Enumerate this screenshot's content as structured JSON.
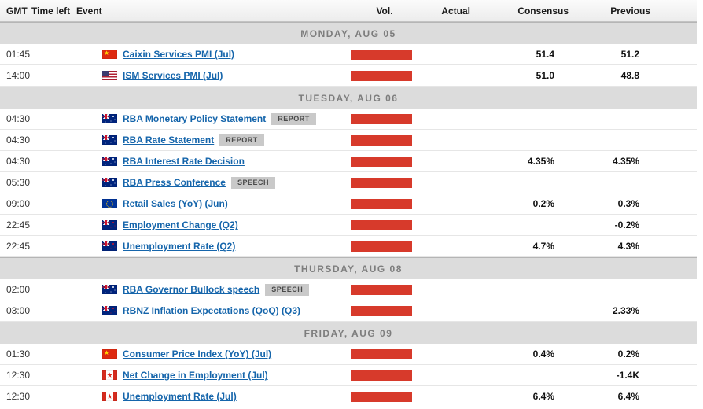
{
  "table": {
    "columns": {
      "gmt": "GMT",
      "time_left": "Time left",
      "event": "Event",
      "vol": "Vol.",
      "actual": "Actual",
      "consensus": "Consensus",
      "previous": "Previous"
    }
  },
  "colors": {
    "volume_bar": "#d73a2b",
    "link": "#1565ab",
    "day_band": "#dcdcdc",
    "badge_bg": "#c9c9c9"
  },
  "flag_names": {
    "cn": "china-flag",
    "us": "usa-flag",
    "au": "australia-flag",
    "eu": "european-union-flag",
    "nz": "new-zealand-flag",
    "ca": "canada-flag"
  },
  "days": [
    {
      "label": "MONDAY, AUG 05",
      "events": [
        {
          "gmt": "01:45",
          "time_left": "",
          "flag": "cn",
          "label": "Caixin Services PMI (Jul)",
          "volatility": "high",
          "actual": "",
          "consensus": "51.4",
          "previous": "51.2"
        },
        {
          "gmt": "14:00",
          "time_left": "",
          "flag": "us",
          "label": "ISM Services PMI (Jul)",
          "volatility": "high",
          "actual": "",
          "consensus": "51.0",
          "previous": "48.8"
        }
      ]
    },
    {
      "label": "TUESDAY, AUG 06",
      "events": [
        {
          "gmt": "04:30",
          "time_left": "",
          "flag": "au",
          "label": "RBA Monetary Policy Statement",
          "badge": "REPORT",
          "volatility": "high",
          "actual": "",
          "consensus": "",
          "previous": ""
        },
        {
          "gmt": "04:30",
          "time_left": "",
          "flag": "au",
          "label": "RBA Rate Statement",
          "badge": "REPORT",
          "volatility": "high",
          "actual": "",
          "consensus": "",
          "previous": ""
        },
        {
          "gmt": "04:30",
          "time_left": "",
          "flag": "au",
          "label": "RBA Interest Rate Decision",
          "volatility": "high",
          "actual": "",
          "consensus": "4.35%",
          "previous": "4.35%"
        },
        {
          "gmt": "05:30",
          "time_left": "",
          "flag": "au",
          "label": "RBA Press Conference",
          "badge": "SPEECH",
          "volatility": "high",
          "actual": "",
          "consensus": "",
          "previous": ""
        },
        {
          "gmt": "09:00",
          "time_left": "",
          "flag": "eu",
          "label": "Retail Sales (YoY) (Jun)",
          "volatility": "high",
          "actual": "",
          "consensus": "0.2%",
          "previous": "0.3%"
        },
        {
          "gmt": "22:45",
          "time_left": "",
          "flag": "nz",
          "label": "Employment Change (Q2)",
          "volatility": "high",
          "actual": "",
          "consensus": "",
          "previous": "-0.2%"
        },
        {
          "gmt": "22:45",
          "time_left": "",
          "flag": "nz",
          "label": "Unemployment Rate (Q2)",
          "volatility": "high",
          "actual": "",
          "consensus": "4.7%",
          "previous": "4.3%"
        }
      ]
    },
    {
      "label": "THURSDAY, AUG 08",
      "events": [
        {
          "gmt": "02:00",
          "time_left": "",
          "flag": "au",
          "label": "RBA Governor Bullock speech",
          "badge": "SPEECH",
          "volatility": "high",
          "actual": "",
          "consensus": "",
          "previous": ""
        },
        {
          "gmt": "03:00",
          "time_left": "",
          "flag": "nz",
          "label": "RBNZ Inflation Expectations (QoQ) (Q3)",
          "volatility": "high",
          "actual": "",
          "consensus": "",
          "previous": "2.33%"
        }
      ]
    },
    {
      "label": "FRIDAY, AUG 09",
      "events": [
        {
          "gmt": "01:30",
          "time_left": "",
          "flag": "cn",
          "label": "Consumer Price Index (YoY) (Jul)",
          "volatility": "high",
          "actual": "",
          "consensus": "0.4%",
          "previous": "0.2%"
        },
        {
          "gmt": "12:30",
          "time_left": "",
          "flag": "ca",
          "label": "Net Change in Employment (Jul)",
          "volatility": "high",
          "actual": "",
          "consensus": "",
          "previous": "-1.4K"
        },
        {
          "gmt": "12:30",
          "time_left": "",
          "flag": "ca",
          "label": "Unemployment Rate (Jul)",
          "volatility": "high",
          "actual": "",
          "consensus": "6.4%",
          "previous": "6.4%"
        }
      ]
    }
  ]
}
